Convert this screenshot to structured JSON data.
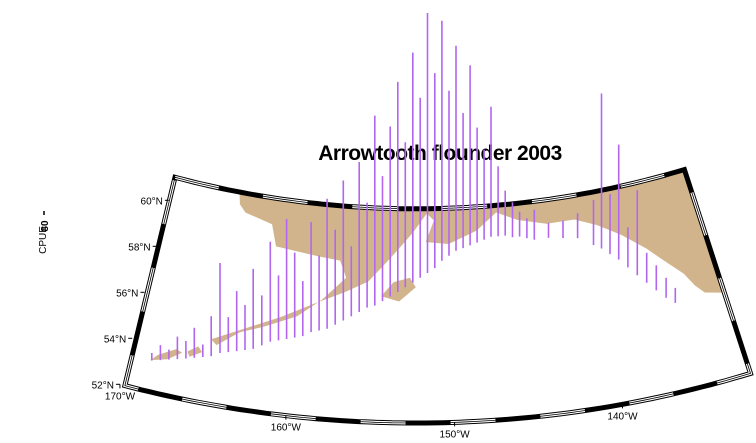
{
  "title": "Arrowtooth flounder 2003",
  "axis_label": "CPUE",
  "scale": {
    "value": 80,
    "label": "80"
  },
  "lat_labels": [
    {
      "value": 52,
      "label": "52°N"
    },
    {
      "value": 54,
      "label": "54°N"
    },
    {
      "value": 56,
      "label": "56°N"
    },
    {
      "value": 58,
      "label": "58°N"
    },
    {
      "value": 60,
      "label": "60°N"
    }
  ],
  "lon_labels": [
    {
      "value": -170,
      "label": "170°W"
    },
    {
      "value": -160,
      "label": "160°W"
    },
    {
      "value": -150,
      "label": "150°W"
    },
    {
      "value": -140,
      "label": "140°W"
    }
  ],
  "spike_color": "#b266f0",
  "land_color": "#d2b48c",
  "stations": {
    "lon": [
      -168.5,
      -168,
      -167.5,
      -167,
      -166.5,
      -166,
      -165.5,
      -165,
      -164.5,
      -164,
      -163.5,
      -163,
      -162.5,
      -162,
      -161.5,
      -161,
      -160.5,
      -160,
      -159.5,
      -159,
      -158.5,
      -158,
      -157.5,
      -157,
      -156.5,
      -156,
      -155.5,
      -155,
      -154.5,
      -154,
      -153.5,
      -153,
      -152.5,
      -152,
      -151.5,
      -151,
      -150.5,
      -150,
      -149.5,
      -149,
      -148.5,
      -148,
      -147.5,
      -147,
      -146.5,
      -146,
      -145.5,
      -145,
      -144.5,
      -144,
      -143,
      -142,
      -141,
      -140,
      -139.5,
      -139,
      -138.5,
      -138,
      -137.5,
      -137,
      -136.5,
      -136,
      -135.5
    ],
    "lat": [
      53.3,
      53.4,
      53.5,
      53.6,
      53.7,
      53.8,
      53.9,
      54,
      54.2,
      54.3,
      54.4,
      54.5,
      54.6,
      54.8,
      55,
      55.1,
      55.2,
      55.3,
      55.4,
      55.6,
      55.7,
      55.8,
      56,
      56.2,
      56.4,
      56.6,
      56.8,
      56.9,
      57.1,
      57.3,
      57.5,
      57.7,
      57.9,
      58.1,
      58.3,
      58.5,
      58.8,
      59,
      59.2,
      59.3,
      59.4,
      59.5,
      59.6,
      59.7,
      59.7,
      59.7,
      59.6,
      59.6,
      59.5,
      59.4,
      59.4,
      59.3,
      59.2,
      58.8,
      58.6,
      58.3,
      58,
      57.6,
      57.2,
      56.8,
      56.4,
      56,
      55.7
    ],
    "cpue": [
      150,
      300,
      200,
      450,
      350,
      600,
      250,
      800,
      1800,
      700,
      1200,
      900,
      1600,
      1000,
      2000,
      1300,
      2400,
      1700,
      1100,
      2200,
      1500,
      2600,
      1900,
      2800,
      1400,
      3000,
      2100,
      3800,
      2500,
      3400,
      4200,
      2900,
      4600,
      3600,
      5200,
      3900,
      4800,
      3300,
      4100,
      2700,
      3600,
      2300,
      1800,
      2600,
      1400,
      900,
      700,
      500,
      400,
      600,
      300,
      350,
      500,
      900,
      3100,
      1200,
      2300,
      800,
      1700,
      600,
      500,
      400,
      300
    ]
  }
}
